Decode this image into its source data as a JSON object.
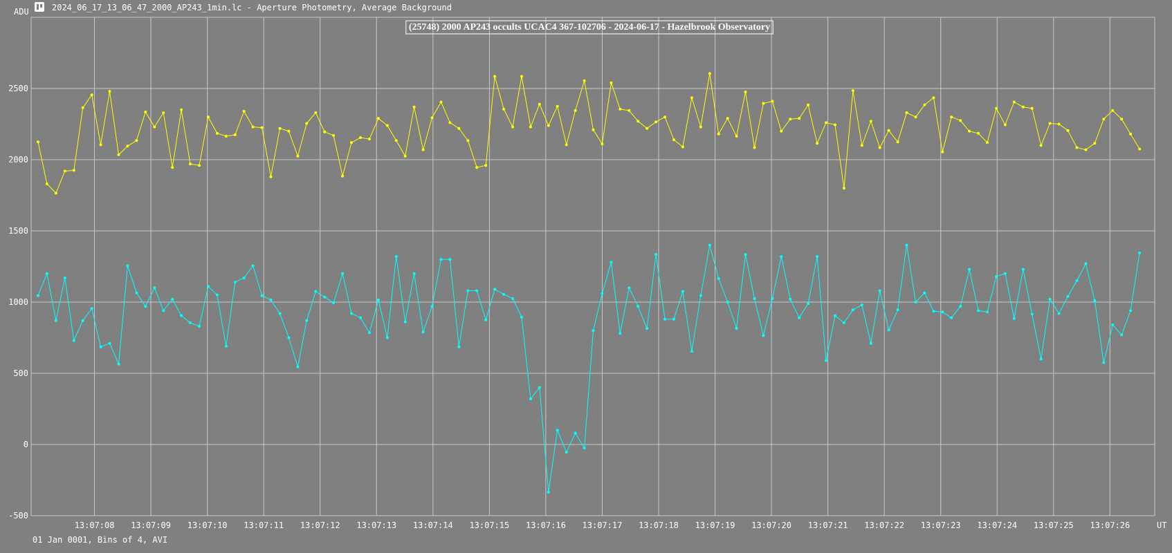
{
  "window": {
    "title": "2024_06_17_13_06_47_2000_AP243_1min.lc - Aperture Photometry, Average Background",
    "icon": "lightcurve-app-icon"
  },
  "footer": {
    "text": "01 Jan 0001, Bins of 4, AVI"
  },
  "colors": {
    "background": "#808080",
    "grid": "#c8c8c8",
    "comparison_series": "#ffff00",
    "target_series": "#00ffff",
    "text": "#ffffff"
  },
  "chart_data": {
    "type": "line",
    "title": "(25748) 2000 AP243 occults UCAC4 367-102706 - 2024-06-17 - Hazelbrook Observatory",
    "ylabel": "ADU",
    "xlabel": "UT",
    "ylim": [
      -500,
      3000
    ],
    "yticks": [
      -500,
      0,
      500,
      1000,
      1500,
      2000,
      2500
    ],
    "xlim": [
      0,
      124
    ],
    "xticks": [
      {
        "pos": 6.3,
        "label": "13:07:08"
      },
      {
        "pos": 12.6,
        "label": "13:07:09"
      },
      {
        "pos": 18.9,
        "label": "13:07:10"
      },
      {
        "pos": 25.2,
        "label": "13:07:11"
      },
      {
        "pos": 31.5,
        "label": "13:07:12"
      },
      {
        "pos": 37.8,
        "label": "13:07:13"
      },
      {
        "pos": 44.1,
        "label": "13:07:14"
      },
      {
        "pos": 50.4,
        "label": "13:07:15"
      },
      {
        "pos": 56.7,
        "label": "13:07:16"
      },
      {
        "pos": 63.0,
        "label": "13:07:17"
      },
      {
        "pos": 69.3,
        "label": "13:07:18"
      },
      {
        "pos": 75.6,
        "label": "13:07:19"
      },
      {
        "pos": 81.9,
        "label": "13:07:20"
      },
      {
        "pos": 88.2,
        "label": "13:07:21"
      },
      {
        "pos": 94.5,
        "label": "13:07:22"
      },
      {
        "pos": 100.8,
        "label": "13:07:23"
      },
      {
        "pos": 107.1,
        "label": "13:07:24"
      },
      {
        "pos": 113.4,
        "label": "13:07:25"
      },
      {
        "pos": 119.7,
        "label": "13:07:26"
      }
    ],
    "grid": true,
    "series": [
      {
        "color": "#ffff00",
        "values": [
          2125,
          1830,
          1765,
          1920,
          1925,
          2365,
          2455,
          2105,
          2480,
          2035,
          2095,
          2135,
          2335,
          2230,
          2330,
          1945,
          2350,
          1970,
          1960,
          2300,
          2185,
          2165,
          2175,
          2340,
          2230,
          2225,
          1880,
          2220,
          2200,
          2025,
          2255,
          2330,
          2195,
          2170,
          1885,
          2120,
          2155,
          2145,
          2290,
          2240,
          2135,
          2025,
          2370,
          2070,
          2295,
          2405,
          2260,
          2220,
          2135,
          1945,
          1960,
          2585,
          2355,
          2230,
          2585,
          2230,
          2390,
          2240,
          2375,
          2105,
          2345,
          2555,
          2210,
          2110,
          2540,
          2355,
          2345,
          2270,
          2220,
          2265,
          2300,
          2140,
          2090,
          2435,
          2230,
          2605,
          2180,
          2290,
          2165,
          2475,
          2085,
          2395,
          2410,
          2200,
          2285,
          2290,
          2385,
          2115,
          2260,
          2245,
          1800,
          2485,
          2100,
          2270,
          2085,
          2205,
          2125,
          2330,
          2300,
          2385,
          2435,
          2055,
          2300,
          2275,
          2200,
          2185,
          2120,
          2360,
          2245,
          2405,
          2370,
          2360,
          2100,
          2255,
          2250,
          2205,
          2085,
          2070,
          2115,
          2285,
          2345,
          2285,
          2180,
          2075
        ]
      },
      {
        "color": "#00ffff",
        "values": [
          1045,
          1200,
          870,
          1170,
          730,
          870,
          955,
          685,
          710,
          565,
          1255,
          1065,
          970,
          1100,
          940,
          1020,
          905,
          855,
          830,
          1110,
          1050,
          690,
          1140,
          1170,
          1255,
          1045,
          1015,
          920,
          750,
          545,
          870,
          1075,
          1035,
          995,
          1200,
          920,
          890,
          785,
          1015,
          750,
          1320,
          860,
          1200,
          790,
          970,
          1300,
          1300,
          685,
          1080,
          1080,
          875,
          1090,
          1055,
          1025,
          895,
          320,
          400,
          -335,
          100,
          -55,
          80,
          -25,
          800,
          1060,
          1280,
          780,
          1100,
          970,
          815,
          1335,
          880,
          880,
          1075,
          655,
          1045,
          1400,
          1165,
          1000,
          815,
          1335,
          1025,
          765,
          1025,
          1320,
          1020,
          890,
          990,
          1320,
          590,
          905,
          855,
          945,
          980,
          710,
          1080,
          805,
          945,
          1400,
          1000,
          1065,
          935,
          930,
          890,
          970,
          1230,
          940,
          930,
          1180,
          1200,
          885,
          1230,
          915,
          600,
          1020,
          920,
          1040,
          1150,
          1270,
          1010,
          575,
          840,
          770,
          940,
          1345
        ]
      }
    ]
  }
}
